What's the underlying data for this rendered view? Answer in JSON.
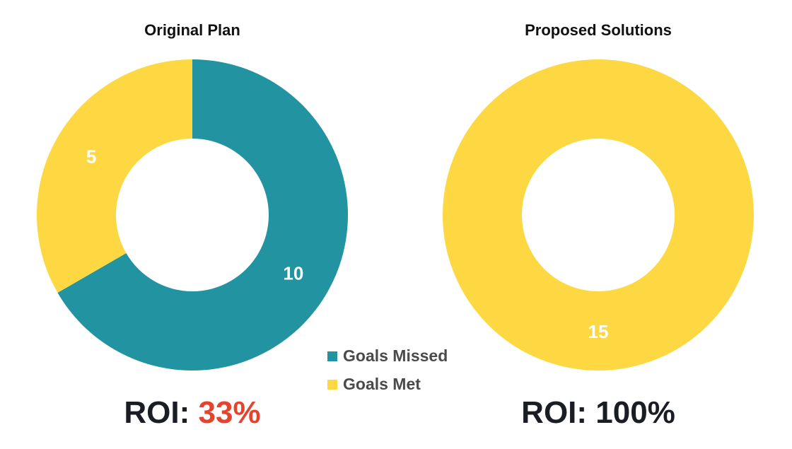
{
  "chart_data": [
    {
      "type": "pie",
      "title": "Original Plan",
      "categories": [
        "Goals Missed",
        "Goals Met"
      ],
      "values": [
        10,
        5
      ],
      "colors": [
        "#2293a0",
        "#fdd843"
      ],
      "annotation": {
        "label": "ROI:",
        "value": "33%",
        "value_color": "#e5432e"
      }
    },
    {
      "type": "pie",
      "title": "Proposed Solutions",
      "categories": [
        "Goals Missed",
        "Goals Met"
      ],
      "values": [
        0,
        15
      ],
      "colors": [
        "#2293a0",
        "#fdd843"
      ],
      "annotation": {
        "label": "ROI:",
        "value": "100%",
        "value_color": "#1a1d24"
      }
    }
  ]
}
